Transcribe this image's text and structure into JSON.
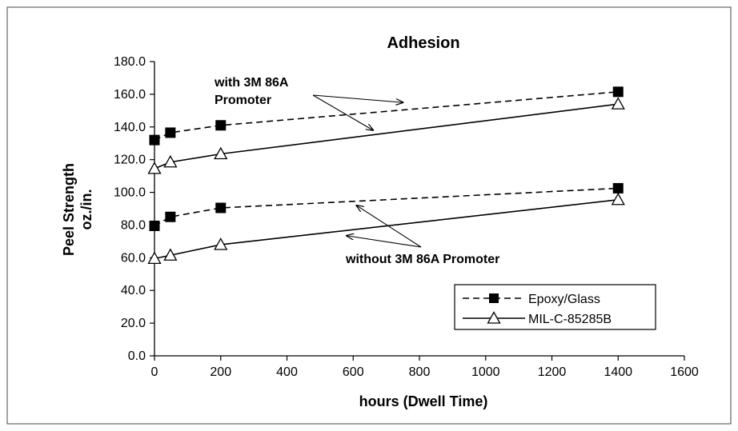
{
  "chart_data": {
    "type": "line",
    "title": "Adhesion",
    "xlabel": "hours (Dwell Time)",
    "ylabel_line1": "Peel Strength",
    "ylabel_line2": "oz./in.",
    "xlim": [
      0,
      1600
    ],
    "ylim": [
      0,
      180
    ],
    "x_ticks": [
      "0",
      "200",
      "400",
      "600",
      "800",
      "1000",
      "1200",
      "1400",
      "1600"
    ],
    "y_ticks": [
      "0.0",
      "20.0",
      "40.0",
      "60.0",
      "80.0",
      "100.0",
      "120.0",
      "140.0",
      "160.0",
      "180.0"
    ],
    "grid": false,
    "legend_position": "bottom-right",
    "series": [
      {
        "name": "Epoxy/Glass",
        "line_style": "dashed",
        "marker": "filled-square",
        "x": [
          0,
          48,
          200,
          1400
        ],
        "y": [
          132,
          136.5,
          141,
          161.5
        ]
      },
      {
        "name": "Epoxy/Glass",
        "line_style": "dashed",
        "marker": "filled-square",
        "x": [
          0,
          48,
          200,
          1400
        ],
        "y": [
          79.5,
          85,
          90.5,
          102.5
        ]
      },
      {
        "name": "MIL-C-85285B",
        "line_style": "solid",
        "marker": "open-triangle",
        "x": [
          0,
          48,
          200,
          1400
        ],
        "y": [
          114.5,
          118.5,
          123.5,
          154
        ]
      },
      {
        "name": "MIL-C-85285B",
        "line_style": "solid",
        "marker": "open-triangle",
        "x": [
          0,
          48,
          200,
          1400
        ],
        "y": [
          59.5,
          61.5,
          68,
          95.5
        ]
      }
    ],
    "legend": [
      {
        "label": "Epoxy/Glass",
        "line_style": "dashed",
        "marker": "filled-square"
      },
      {
        "label": "MIL-C-85285B",
        "line_style": "solid",
        "marker": "open-triangle"
      }
    ],
    "annotations": [
      {
        "lines": [
          "with 3M 86A",
          "Promoter"
        ],
        "arrow_targets": [
          {
            "x": 750,
            "y": 155
          },
          {
            "x": 660,
            "y": 138
          }
        ]
      },
      {
        "lines": [
          "without 3M 86A Promoter"
        ],
        "arrow_targets": [
          {
            "x": 610,
            "y": 92
          },
          {
            "x": 580,
            "y": 73.5
          }
        ]
      }
    ]
  }
}
